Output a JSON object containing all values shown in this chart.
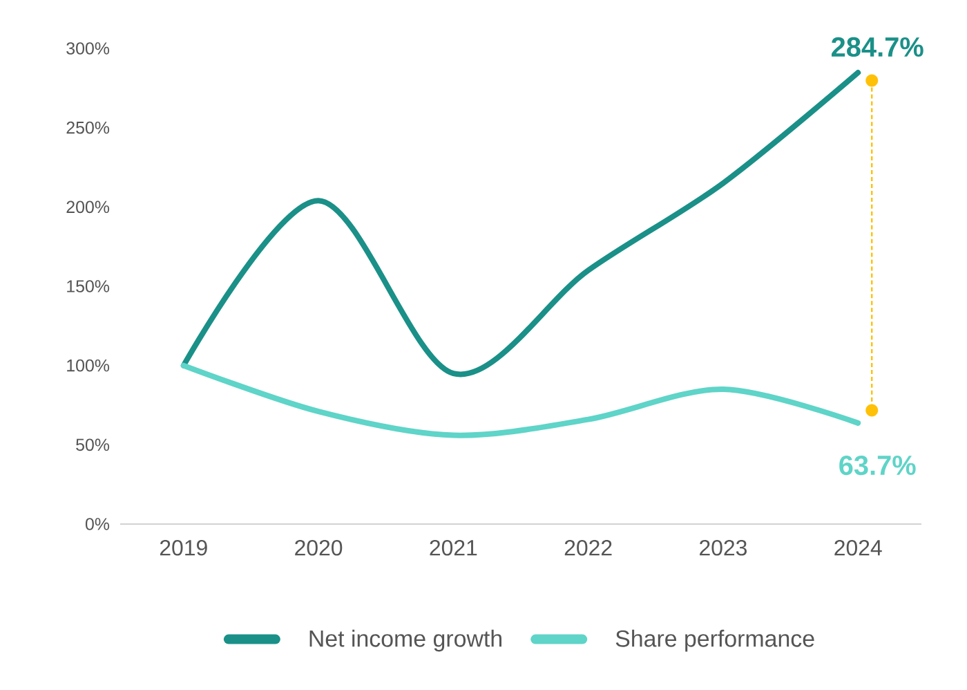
{
  "chart_data": {
    "type": "line",
    "categories": [
      "2019",
      "2020",
      "2021",
      "2022",
      "2023",
      "2024"
    ],
    "series": [
      {
        "name": "Net income growth",
        "color": "#1a9088",
        "values": [
          100,
          204,
          95,
          160,
          215,
          284.7
        ],
        "value_labels": [
          null,
          null,
          null,
          null,
          null,
          "284.7%"
        ]
      },
      {
        "name": "Share performance",
        "color": "#5fd4c8",
        "values": [
          100,
          71,
          56,
          66,
          85,
          63.7
        ],
        "value_labels": [
          null,
          null,
          null,
          null,
          null,
          "63.7%"
        ]
      }
    ],
    "ylim": [
      0,
      300
    ],
    "yticks": [
      {
        "value": 0,
        "label": "0%"
      },
      {
        "value": 50,
        "label": "50%"
      },
      {
        "value": 100,
        "label": "100%"
      },
      {
        "value": 150,
        "label": "150%"
      },
      {
        "value": 200,
        "label": "200%"
      },
      {
        "value": 250,
        "label": "250%"
      },
      {
        "value": 300,
        "label": "300%"
      }
    ],
    "grid": false,
    "legend": "bottom",
    "marker": "none",
    "line_style": "solid"
  }
}
